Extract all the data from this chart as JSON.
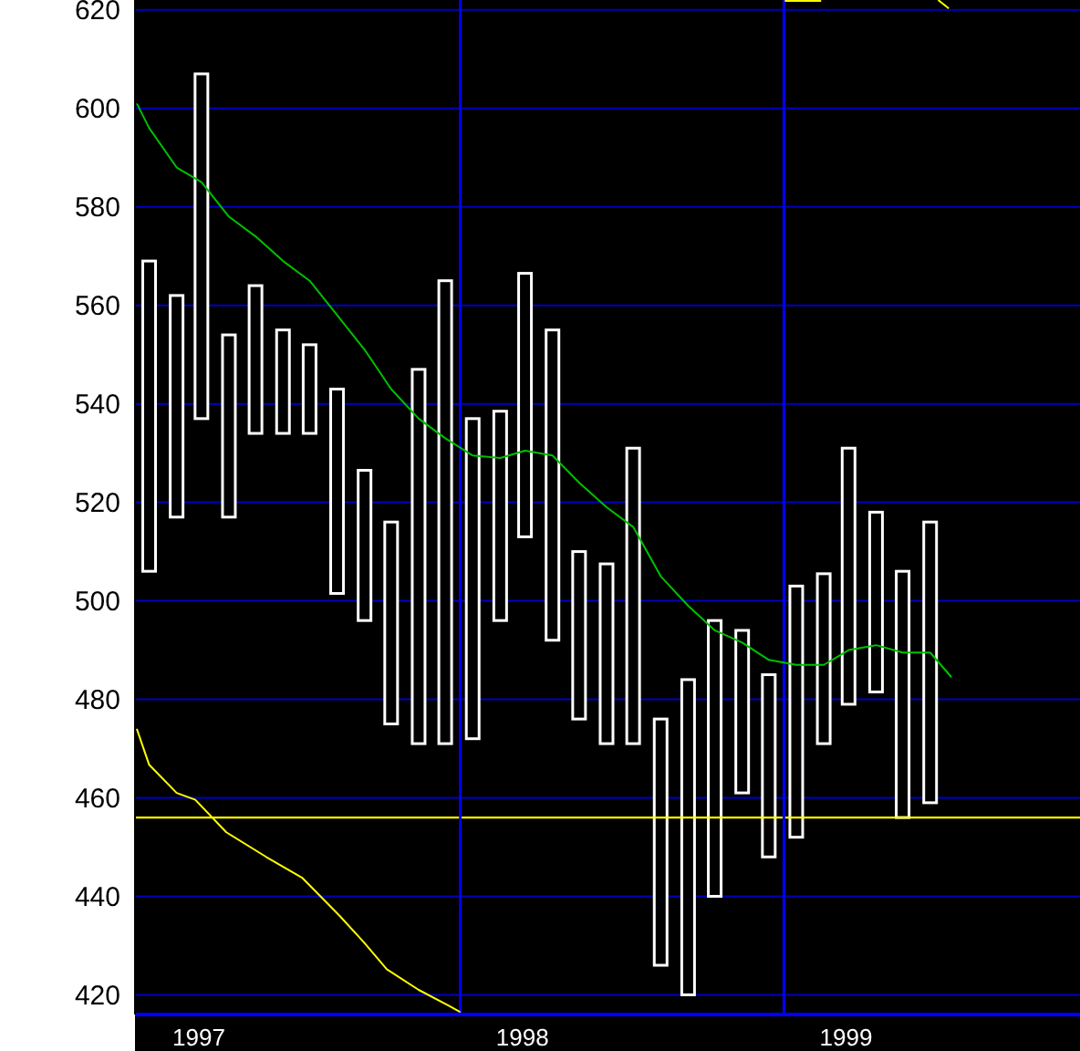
{
  "chart_data": {
    "type": "bar",
    "xlim": [
      "1996-12-30",
      "1999-12-01"
    ],
    "ylim": [
      416,
      622
    ],
    "xticks": [
      {
        "value": "1997-03-12",
        "label": "1997"
      },
      {
        "value": "1998-03-12",
        "label": "1998"
      },
      {
        "value": "1999-03-12",
        "label": "1999"
      }
    ],
    "yticks": [
      420,
      440,
      460,
      480,
      500,
      520,
      540,
      560,
      580,
      600,
      620
    ],
    "grid": "y",
    "marker": "none",
    "line_style": "solid",
    "series": [
      {
        "color": "#ffffff",
        "x": [
          "1997-01-15",
          "1997-02-15",
          "1997-03-15",
          "1997-04-15",
          "1997-05-15",
          "1997-06-15",
          "1997-07-15",
          "1997-08-15",
          "1997-09-15",
          "1997-10-15",
          "1997-11-15",
          "1997-12-15",
          "1998-01-15",
          "1998-02-15",
          "1998-03-15",
          "1998-04-15",
          "1998-05-15",
          "1998-06-15",
          "1998-07-15",
          "1998-08-15",
          "1998-09-15",
          "1998-10-15",
          "1998-11-15",
          "1998-12-15",
          "1999-01-15",
          "1999-02-15",
          "1999-03-15",
          "1999-04-15",
          "1999-05-15",
          "1999-06-15"
        ],
        "base": [
          506,
          517,
          537,
          517,
          534,
          534,
          534,
          501.5,
          496,
          475,
          471,
          471,
          472,
          496,
          513,
          492,
          476,
          471,
          471,
          426,
          420,
          440,
          461,
          448,
          452,
          471,
          479,
          481.5,
          456,
          459
        ],
        "values": [
          63,
          45,
          70,
          37,
          30,
          21,
          18,
          41.5,
          30.5,
          41,
          76,
          94,
          65,
          42.5,
          53.5,
          63,
          34,
          36.5,
          60,
          50,
          64,
          56,
          33,
          37,
          51,
          34.5,
          52,
          36.5,
          50,
          57
        ]
      },
      {
        "type": "line",
        "color": "#00c000",
        "x": [
          "1997-01-01",
          "1997-01-15",
          "1997-02-15",
          "1997-03-15",
          "1997-04-15",
          "1997-05-15",
          "1997-06-15",
          "1997-07-15",
          "1997-08-15",
          "1997-09-15",
          "1997-10-15",
          "1997-11-15",
          "1997-12-15",
          "1998-01-15",
          "1998-02-15",
          "1998-03-15",
          "1998-04-15",
          "1998-05-15",
          "1998-06-15",
          "1998-07-15",
          "1998-08-15",
          "1998-09-15",
          "1998-10-15",
          "1998-11-15",
          "1998-12-15",
          "1999-01-15",
          "1999-02-15",
          "1999-03-15",
          "1999-04-15",
          "1999-05-15",
          "1999-06-15",
          "1999-07-09"
        ],
        "values": [
          601,
          596,
          588,
          585,
          578,
          574,
          569,
          565,
          558,
          551,
          543,
          537,
          533,
          529.5,
          529,
          530.5,
          529.5,
          524,
          519,
          515,
          505,
          499,
          494,
          491.5,
          488,
          487,
          487,
          490,
          491,
          489.5,
          489.5,
          484.5
        ]
      },
      {
        "type": "line",
        "color": "#ffff00",
        "x": [
          "1997-01-01",
          "1997-01-15",
          "1997-02-15",
          "1997-03-08",
          "1997-04-12",
          "1997-05-27",
          "1997-07-07",
          "1997-08-18",
          "1997-09-14",
          "1997-10-10",
          "1997-11-15",
          "1997-12-19",
          "1998-01-01"
        ],
        "values": [
          474,
          466.7,
          461,
          459.6,
          453,
          448,
          443.7,
          436,
          430.7,
          425.2,
          421,
          417.8,
          416.5
        ]
      },
      {
        "type": "line",
        "color": "#ffff00",
        "x": [
          "1999-01-02",
          "1999-02-12",
          "1999-04-01",
          "1999-06-24",
          "1999-07-06"
        ],
        "values": [
          621.8,
          621.8,
          null,
          622,
          620.3
        ]
      }
    ],
    "ref_lines": [
      {
        "axis": "y",
        "value": 456,
        "color": "#ffff00"
      },
      {
        "axis": "x",
        "value": "1998-01-01",
        "color": "#0000ff"
      },
      {
        "axis": "x",
        "value": "1999-01-01",
        "color": "#0000ff"
      }
    ]
  }
}
